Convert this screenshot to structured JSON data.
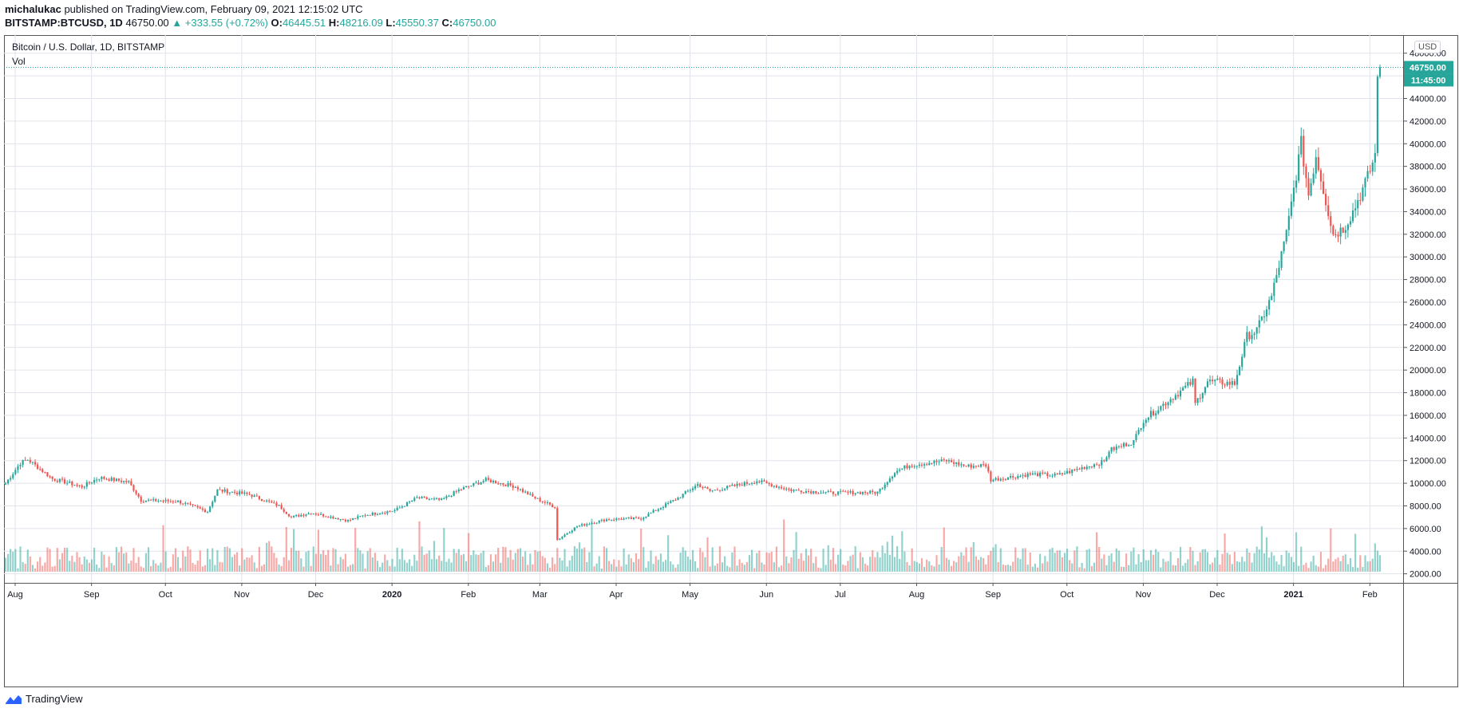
{
  "header": {
    "author": "michalukac",
    "published_text": "published on TradingView.com, February 09, 2021 12:15:02 UTC",
    "symbol": "BITSTAMP:BTCUSD, 1D",
    "last": "46750.00",
    "change": "▲ +333.55 (+0.72%)",
    "o_label": "O:",
    "o": "46445.51",
    "h_label": "H:",
    "h": "48216.09",
    "l_label": "L:",
    "l": "45550.37",
    "c_label": "C:",
    "c": "46750.00"
  },
  "legend": {
    "title": "Bitcoin / U.S. Dollar, 1D, BITSTAMP",
    "volume": "Vol"
  },
  "currency": "USD",
  "price_tags": {
    "last_price": "46750.00",
    "countdown": "11:45:00"
  },
  "brand": "TradingView",
  "colors": {
    "up": "#26a69a",
    "down": "#ef5350",
    "grid": "#e0e3eb",
    "tag": "#26a69a"
  },
  "chart_data": {
    "type": "candlestick",
    "title": "Bitcoin / U.S. Dollar, 1D, BITSTAMP",
    "y_ticks": [
      "48000.00",
      "46000.00",
      "44000.00",
      "42000.00",
      "40000.00",
      "38000.00",
      "36000.00",
      "34000.00",
      "32000.00",
      "30000.00",
      "28000.00",
      "26000.00",
      "24000.00",
      "22000.00",
      "20000.00",
      "18000.00",
      "16000.00",
      "14000.00",
      "12000.00",
      "10000.00",
      "8000.00",
      "6000.00",
      "4000.00",
      "2000.00"
    ],
    "x_ticks": [
      "Aug",
      "Sep",
      "Oct",
      "Nov",
      "Dec",
      "2020",
      "Feb",
      "Mar",
      "Apr",
      "May",
      "Jun",
      "Jul",
      "Aug",
      "Sep",
      "Oct",
      "Nov",
      "Dec",
      "2021",
      "Feb"
    ],
    "ylim": [
      1200,
      49600
    ],
    "x_range": [
      "2019-08-01",
      "2021-02-09"
    ],
    "last_value": 46750,
    "close_anchors": [
      {
        "date": "2019-08-01",
        "close": 10000
      },
      {
        "date": "2019-08-07",
        "close": 11800
      },
      {
        "date": "2019-08-10",
        "close": 12100
      },
      {
        "date": "2019-08-20",
        "close": 10400
      },
      {
        "date": "2019-09-01",
        "close": 9700
      },
      {
        "date": "2019-09-08",
        "close": 10500
      },
      {
        "date": "2019-09-20",
        "close": 10100
      },
      {
        "date": "2019-09-25",
        "close": 8500
      },
      {
        "date": "2019-10-10",
        "close": 8400
      },
      {
        "date": "2019-10-22",
        "close": 7500
      },
      {
        "date": "2019-10-26",
        "close": 9400
      },
      {
        "date": "2019-11-08",
        "close": 9000
      },
      {
        "date": "2019-11-20",
        "close": 8000
      },
      {
        "date": "2019-11-25",
        "close": 7000
      },
      {
        "date": "2019-12-03",
        "close": 7400
      },
      {
        "date": "2019-12-18",
        "close": 6700
      },
      {
        "date": "2019-12-25",
        "close": 7200
      },
      {
        "date": "2020-01-06",
        "close": 7600
      },
      {
        "date": "2020-01-15",
        "close": 8700
      },
      {
        "date": "2020-01-25",
        "close": 8500
      },
      {
        "date": "2020-02-01",
        "close": 9400
      },
      {
        "date": "2020-02-12",
        "close": 10300
      },
      {
        "date": "2020-02-24",
        "close": 9700
      },
      {
        "date": "2020-03-02",
        "close": 8800
      },
      {
        "date": "2020-03-11",
        "close": 7900
      },
      {
        "date": "2020-03-12",
        "close": 5000
      },
      {
        "date": "2020-03-20",
        "close": 6200
      },
      {
        "date": "2020-04-01",
        "close": 6800
      },
      {
        "date": "2020-04-15",
        "close": 6900
      },
      {
        "date": "2020-04-30",
        "close": 8700
      },
      {
        "date": "2020-05-08",
        "close": 9900
      },
      {
        "date": "2020-05-13",
        "close": 9300
      },
      {
        "date": "2020-06-01",
        "close": 10200
      },
      {
        "date": "2020-06-15",
        "close": 9400
      },
      {
        "date": "2020-07-01",
        "close": 9150
      },
      {
        "date": "2020-07-20",
        "close": 9200
      },
      {
        "date": "2020-07-27",
        "close": 11000
      },
      {
        "date": "2020-08-02",
        "close": 11600
      },
      {
        "date": "2020-08-17",
        "close": 12000
      },
      {
        "date": "2020-08-25",
        "close": 11500
      },
      {
        "date": "2020-09-02",
        "close": 11600
      },
      {
        "date": "2020-09-04",
        "close": 10300
      },
      {
        "date": "2020-09-20",
        "close": 10800
      },
      {
        "date": "2020-10-01",
        "close": 10700
      },
      {
        "date": "2020-10-10",
        "close": 11300
      },
      {
        "date": "2020-10-20",
        "close": 11900
      },
      {
        "date": "2020-10-22",
        "close": 12900
      },
      {
        "date": "2020-11-01",
        "close": 13700
      },
      {
        "date": "2020-11-05",
        "close": 15600
      },
      {
        "date": "2020-11-18",
        "close": 17800
      },
      {
        "date": "2020-11-25",
        "close": 19000
      },
      {
        "date": "2020-11-26",
        "close": 17000
      },
      {
        "date": "2020-12-01",
        "close": 19000
      },
      {
        "date": "2020-12-12",
        "close": 18800
      },
      {
        "date": "2020-12-17",
        "close": 23000
      },
      {
        "date": "2020-12-21",
        "close": 23500
      },
      {
        "date": "2020-12-27",
        "close": 26500
      },
      {
        "date": "2021-01-02",
        "close": 32000
      },
      {
        "date": "2021-01-08",
        "close": 40000
      },
      {
        "date": "2021-01-11",
        "close": 35500
      },
      {
        "date": "2021-01-14",
        "close": 39000
      },
      {
        "date": "2021-01-21",
        "close": 32000
      },
      {
        "date": "2021-01-25",
        "close": 32500
      },
      {
        "date": "2021-01-29",
        "close": 34000
      },
      {
        "date": "2021-02-04",
        "close": 37000
      },
      {
        "date": "2021-02-07",
        "close": 39000
      },
      {
        "date": "2021-02-08",
        "close": 46500
      },
      {
        "date": "2021-02-09",
        "close": 46750
      }
    ]
  }
}
